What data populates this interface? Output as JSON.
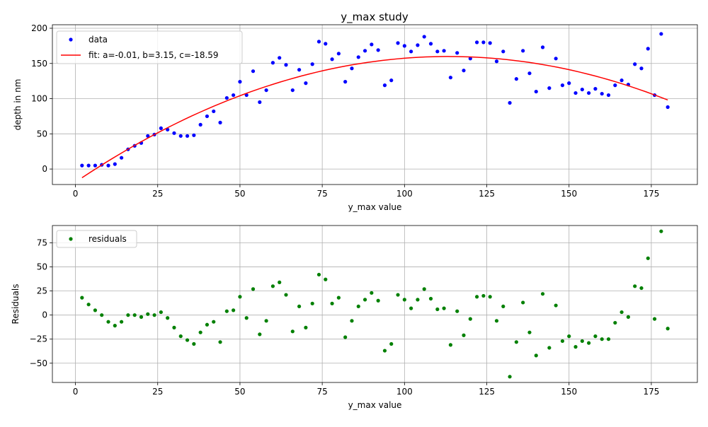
{
  "chart_data": [
    {
      "type": "scatter",
      "title": "y_max study",
      "xlabel": "y_max value",
      "ylabel": "depth in nm",
      "xlim": [
        -7,
        189
      ],
      "ylim": [
        -22,
        205
      ],
      "xticks": [
        0,
        25,
        50,
        75,
        100,
        125,
        150,
        175
      ],
      "yticks": [
        0,
        50,
        100,
        150,
        200
      ],
      "grid": true,
      "legend_position": "top-left",
      "series": [
        {
          "name": "data",
          "kind": "points",
          "color": "#0000ff",
          "x": [
            2,
            4,
            6,
            8,
            10,
            12,
            14,
            16,
            18,
            20,
            22,
            24,
            26,
            28,
            30,
            32,
            34,
            36,
            38,
            40,
            42,
            44,
            46,
            48,
            50,
            52,
            54,
            56,
            58,
            60,
            62,
            64,
            66,
            68,
            70,
            72,
            74,
            76,
            78,
            80,
            82,
            84,
            86,
            88,
            90,
            92,
            94,
            96,
            98,
            100,
            102,
            104,
            106,
            108,
            110,
            112,
            114,
            116,
            118,
            120,
            122,
            124,
            126,
            128,
            130,
            132,
            134,
            136,
            138,
            140,
            142,
            144,
            146,
            148,
            150,
            152,
            154,
            156,
            158,
            160,
            162,
            164,
            166,
            168,
            170,
            172,
            174,
            176,
            178,
            180
          ],
          "y": [
            5,
            5,
            5,
            6,
            5,
            7,
            16,
            28,
            33,
            37,
            47,
            49,
            58,
            56,
            51,
            47,
            47,
            48,
            63,
            75,
            82,
            66,
            101,
            105,
            124,
            105,
            139,
            95,
            112,
            151,
            158,
            148,
            112,
            141,
            122,
            149,
            181,
            178,
            156,
            164,
            124,
            143,
            159,
            168,
            177,
            169,
            119,
            126,
            179,
            175,
            167,
            176,
            188,
            178,
            167,
            168,
            130,
            165,
            140,
            157,
            180,
            180,
            179,
            153,
            167,
            94,
            128,
            168,
            136,
            110,
            173,
            115,
            157,
            119,
            122,
            108,
            113,
            108,
            114,
            107,
            105,
            119,
            126,
            120,
            149,
            143,
            171,
            105,
            192,
            88
          ]
        },
        {
          "name": "fit: a=-0.01, b=3.15, c=-18.59",
          "kind": "line",
          "color": "#ff0000",
          "fit": {
            "a": -0.0139,
            "b": 3.15,
            "c": -18.59,
            "x_start": 2,
            "x_end": 180
          }
        }
      ]
    },
    {
      "type": "scatter",
      "title": "",
      "xlabel": "y_max value",
      "ylabel": "Residuals",
      "xlim": [
        -7,
        189
      ],
      "ylim": [
        -70,
        93
      ],
      "xticks": [
        0,
        25,
        50,
        75,
        100,
        125,
        150,
        175
      ],
      "yticks": [
        -50,
        -25,
        0,
        25,
        50,
        75
      ],
      "grid": true,
      "legend_position": "top-left",
      "series": [
        {
          "name": "residuals",
          "kind": "points",
          "color": "#008000",
          "x": [
            2,
            4,
            6,
            8,
            10,
            12,
            14,
            16,
            18,
            20,
            22,
            24,
            26,
            28,
            30,
            32,
            34,
            36,
            38,
            40,
            42,
            44,
            46,
            48,
            50,
            52,
            54,
            56,
            58,
            60,
            62,
            64,
            66,
            68,
            70,
            72,
            74,
            76,
            78,
            80,
            82,
            84,
            86,
            88,
            90,
            92,
            94,
            96,
            98,
            100,
            102,
            104,
            106,
            108,
            110,
            112,
            114,
            116,
            118,
            120,
            122,
            124,
            126,
            128,
            130,
            132,
            134,
            136,
            138,
            140,
            142,
            144,
            146,
            148,
            150,
            152,
            154,
            156,
            158,
            160,
            162,
            164,
            166,
            168,
            170,
            172,
            174,
            176,
            178,
            180
          ],
          "y": [
            18,
            11,
            5,
            0,
            -7,
            -11,
            -7,
            0,
            0,
            -2,
            1,
            0,
            3,
            -3,
            -13,
            -22,
            -26,
            -30,
            -18,
            -10,
            -7,
            -28,
            4,
            5,
            19,
            -3,
            27,
            -20,
            -6,
            30,
            34,
            21,
            -17,
            9,
            -13,
            12,
            42,
            37,
            12,
            18,
            -23,
            -6,
            9,
            16,
            23,
            15,
            -37,
            -30,
            21,
            16,
            7,
            16,
            27,
            17,
            6,
            7,
            -31,
            4,
            -21,
            -4,
            19,
            20,
            19,
            -6,
            9,
            -64,
            -28,
            13,
            -18,
            -42,
            22,
            -34,
            10,
            -27,
            -22,
            -33,
            -27,
            -29,
            -22,
            -25,
            -25,
            -8,
            3,
            -2,
            30,
            28,
            59,
            -4,
            87,
            -14
          ]
        }
      ]
    }
  ]
}
